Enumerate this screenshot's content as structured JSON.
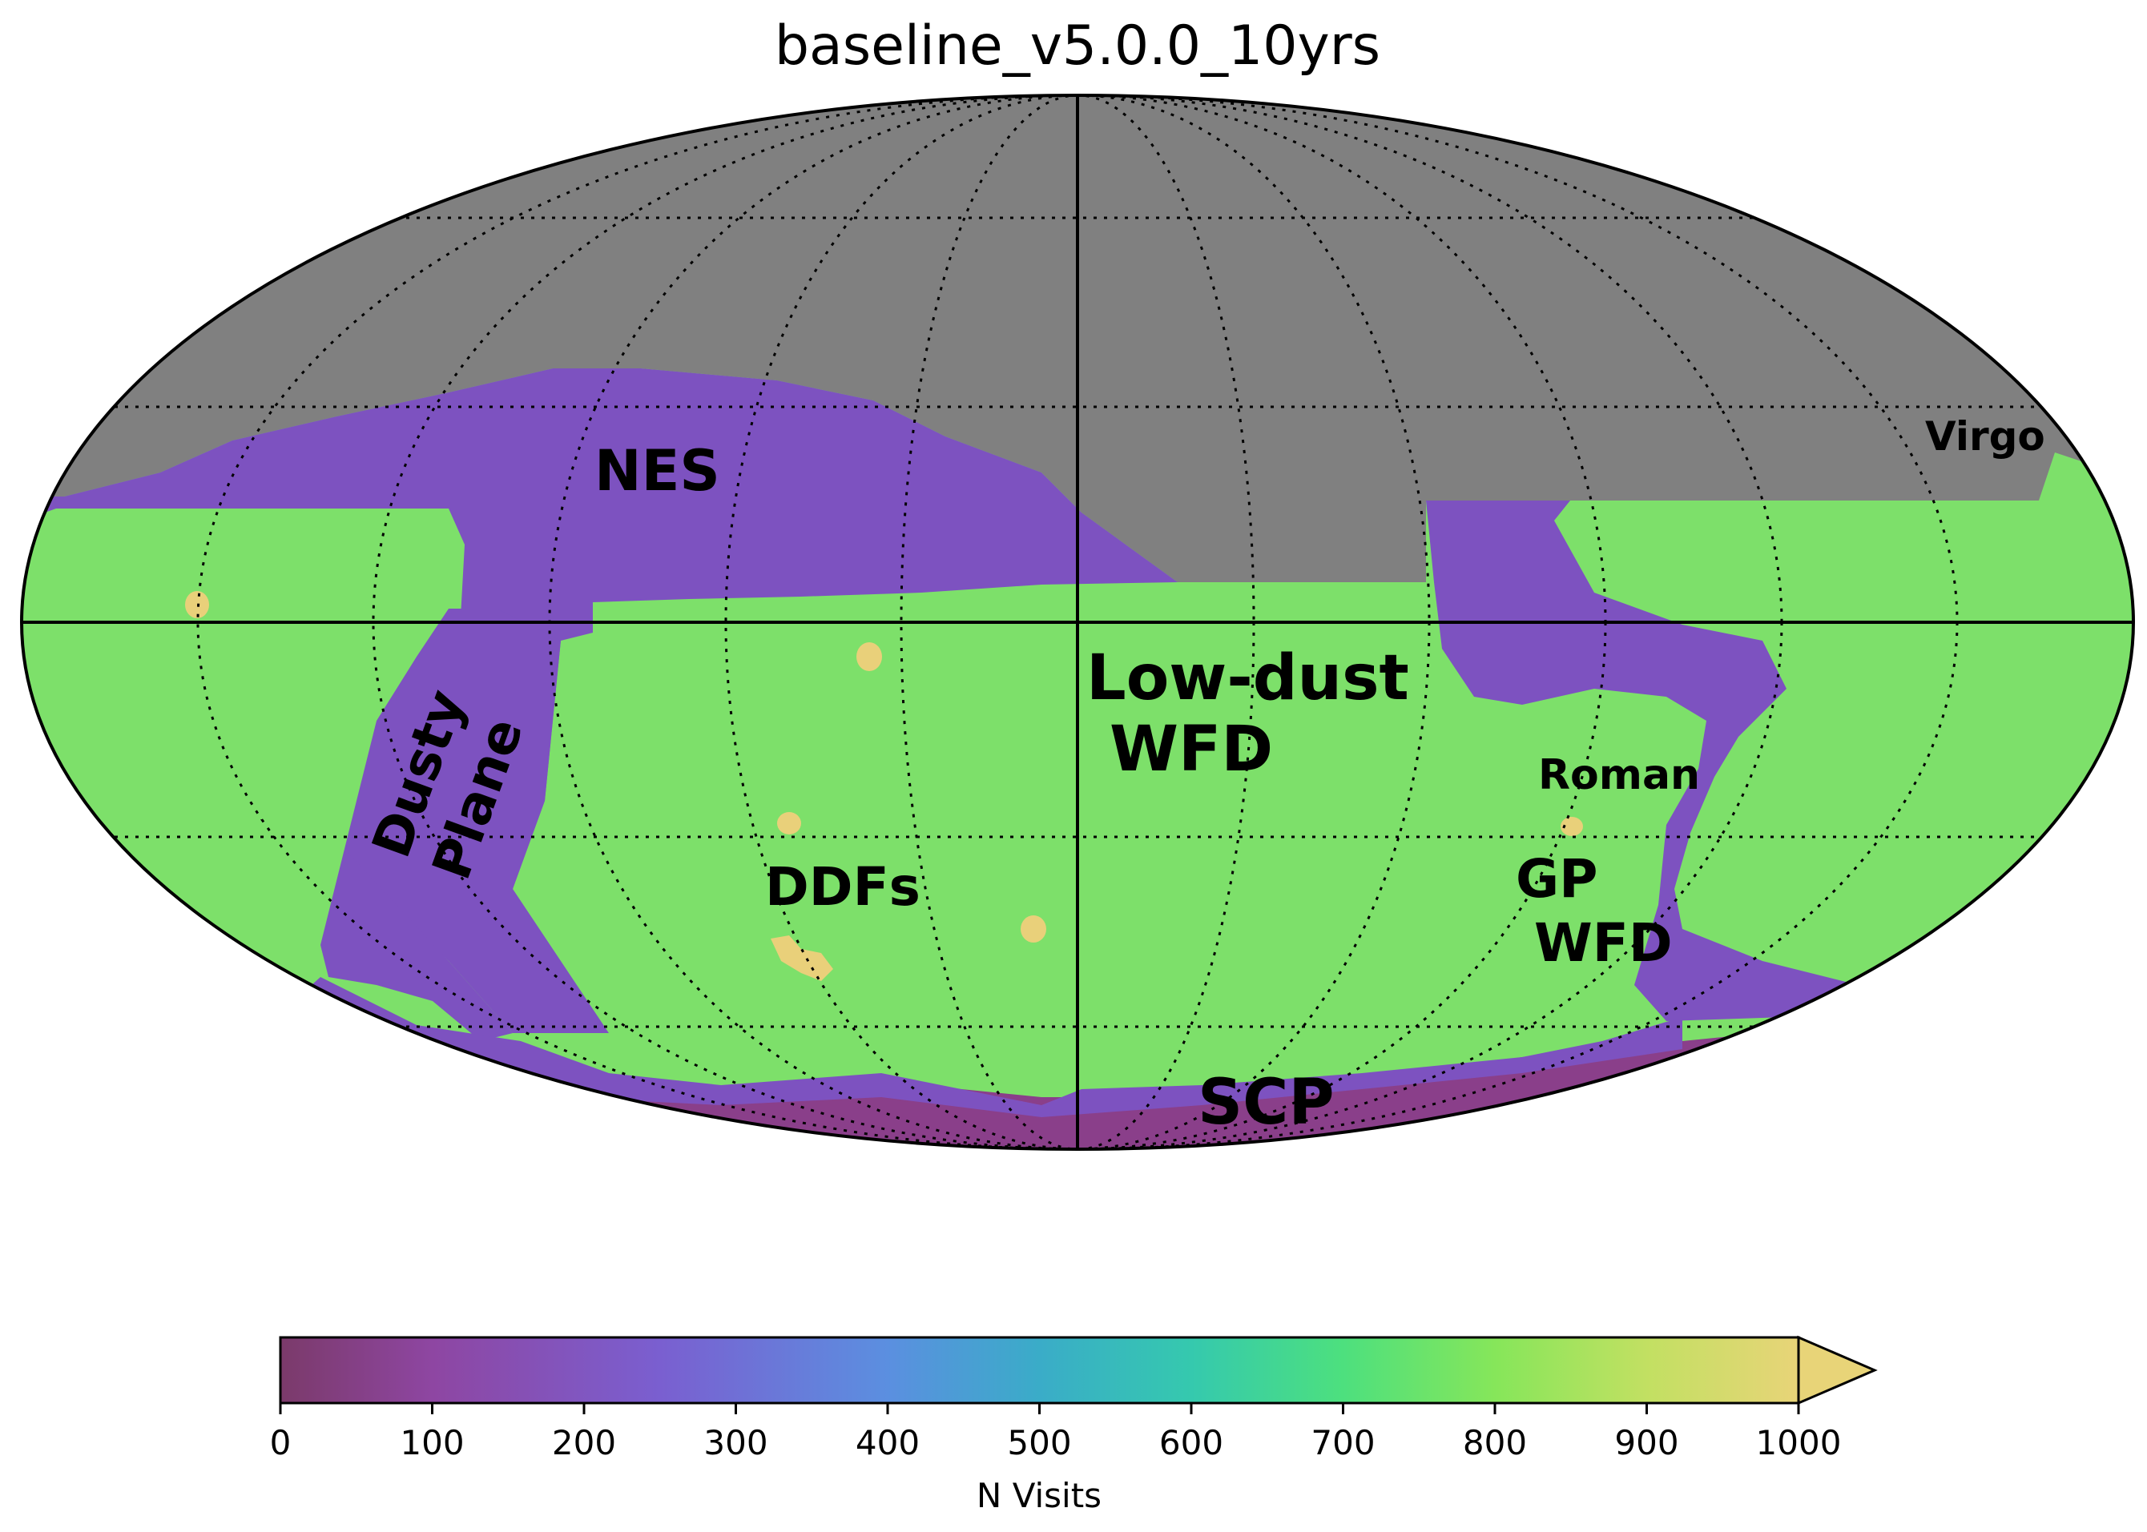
{
  "title": "baseline_v5.0.0_10yrs",
  "regions": {
    "nes": "NES",
    "virgo": "Virgo",
    "dusty_1": "Dusty",
    "dusty_2": "Plane",
    "lowdust_1": "Low-dust",
    "lowdust_2": "WFD",
    "roman": "Roman",
    "gp_1": "GP",
    "gp_2": "WFD",
    "ddfs": "DDFs",
    "scp": "SCP"
  },
  "colorbar": {
    "label": "N Visits",
    "ticks": [
      "0",
      "100",
      "200",
      "300",
      "400",
      "500",
      "600",
      "700",
      "800",
      "900",
      "1000"
    ],
    "range": [
      0,
      1000
    ],
    "extend": "max",
    "colors": [
      "#7b3a6a",
      "#8e46a2",
      "#7a5fd0",
      "#5b8fe0",
      "#3aacc8",
      "#35c9ae",
      "#4de07e",
      "#86e65a",
      "#c2e062",
      "#e8d478"
    ]
  },
  "map_colors": {
    "unobserved": "#808080",
    "low": "#7d52c0",
    "wfd": "#7de06a",
    "ddf": "#e9d07a",
    "scp": "#8a3f8a"
  }
}
